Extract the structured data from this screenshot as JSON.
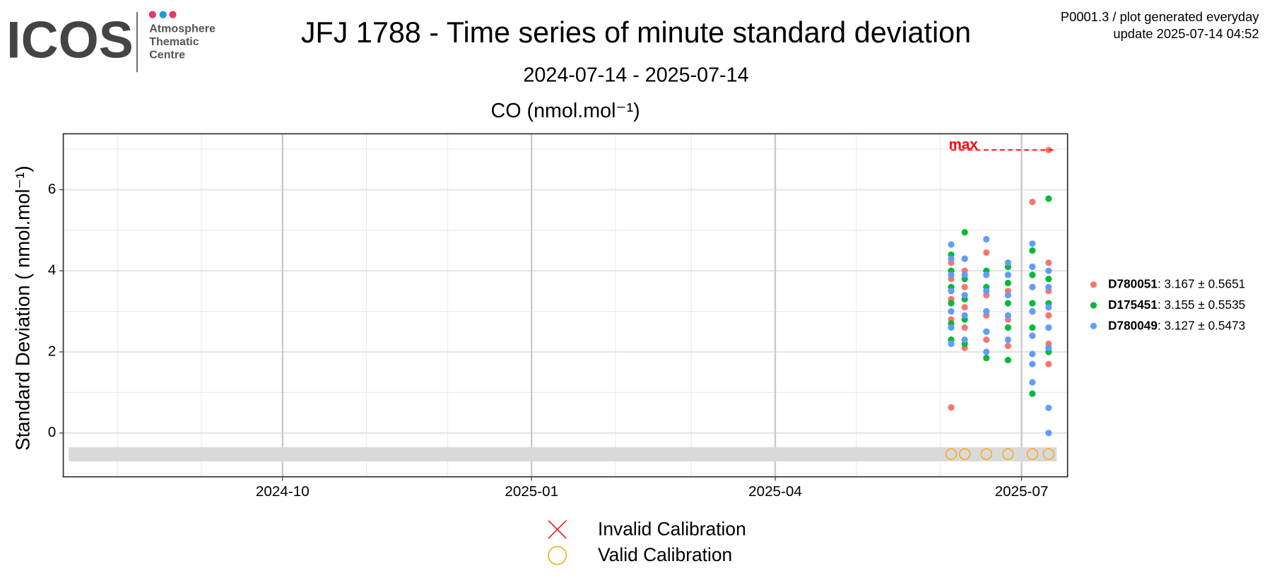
{
  "header": {
    "logo": "ICOS",
    "logo_lines": [
      "Atmosphere",
      "Thematic",
      "Centre"
    ],
    "info_lines": [
      "P0001.3 / plot generated everyday",
      "update  2025-07-14 04:52"
    ]
  },
  "chart_data": {
    "type": "scatter",
    "title": "JFJ 1788 - Time series of minute standard deviation",
    "subtitle": "2024-07-14 - 2025-07-14",
    "panel_title": "CO (nmol.mol⁻¹)",
    "y_label": "Standard Deviation ( nmol.mol⁻¹)",
    "xlim": [
      "2024-07-12",
      "2025-07-18"
    ],
    "xticks": [
      "2024-10",
      "2025-01",
      "2025-04",
      "2025-07"
    ],
    "ylim": [
      -1.08,
      7.38
    ],
    "yticks": [
      0,
      2,
      4,
      6
    ],
    "grid": true,
    "minor_grid": true,
    "legend": "right",
    "series": [
      {
        "name": "D780051",
        "summary": ": 3.167 ± 0.5651",
        "color": "#F8766D",
        "x": [
          "2025-06-05",
          "2025-06-05",
          "2025-06-05",
          "2025-06-05",
          "2025-06-05",
          "2025-06-05",
          "2025-06-10",
          "2025-06-10",
          "2025-06-10",
          "2025-06-10",
          "2025-06-10",
          "2025-06-18",
          "2025-06-18",
          "2025-06-18",
          "2025-06-18",
          "2025-06-26",
          "2025-06-26",
          "2025-06-26",
          "2025-06-26",
          "2025-07-05",
          "2025-07-05",
          "2025-07-05",
          "2025-07-05",
          "2025-07-05",
          "2025-07-11",
          "2025-07-11",
          "2025-07-11",
          "2025-07-11",
          "2025-07-11",
          "2025-07-11"
        ],
        "values": [
          0.63,
          2.3,
          2.8,
          3.3,
          3.8,
          4.2,
          2.1,
          2.6,
          3.1,
          3.6,
          4.0,
          2.3,
          2.9,
          3.4,
          4.45,
          2.15,
          2.8,
          3.5,
          3.9,
          2.4,
          3.0,
          3.6,
          4.1,
          5.7,
          1.7,
          2.2,
          2.9,
          3.5,
          4.2,
          6.98
        ]
      },
      {
        "name": "D175451",
        "summary": ": 3.155 ± 0.5535",
        "color": "#00BA38",
        "x": [
          "2025-06-05",
          "2025-06-05",
          "2025-06-05",
          "2025-06-05",
          "2025-06-05",
          "2025-06-05",
          "2025-06-10",
          "2025-06-10",
          "2025-06-10",
          "2025-06-10",
          "2025-06-10",
          "2025-06-10",
          "2025-06-18",
          "2025-06-18",
          "2025-06-18",
          "2025-06-18",
          "2025-06-18",
          "2025-06-26",
          "2025-06-26",
          "2025-06-26",
          "2025-06-26",
          "2025-06-26",
          "2025-07-05",
          "2025-07-05",
          "2025-07-05",
          "2025-07-05",
          "2025-07-05",
          "2025-07-11",
          "2025-07-11",
          "2025-07-11",
          "2025-07-11",
          "2025-07-11"
        ],
        "values": [
          2.3,
          2.7,
          3.2,
          3.6,
          4.0,
          4.4,
          2.2,
          2.8,
          3.3,
          3.8,
          4.3,
          4.95,
          1.85,
          2.5,
          3.0,
          3.6,
          4.0,
          1.8,
          2.6,
          3.2,
          3.7,
          4.1,
          0.97,
          2.6,
          3.2,
          3.9,
          4.5,
          2.0,
          2.6,
          3.2,
          3.8,
          5.78
        ]
      },
      {
        "name": "D780049",
        "summary": ": 3.127 ± 0.5473",
        "color": "#619CFF",
        "x": [
          "2025-06-05",
          "2025-06-05",
          "2025-06-05",
          "2025-06-05",
          "2025-06-05",
          "2025-06-05",
          "2025-06-05",
          "2025-06-10",
          "2025-06-10",
          "2025-06-10",
          "2025-06-10",
          "2025-06-10",
          "2025-06-18",
          "2025-06-18",
          "2025-06-18",
          "2025-06-18",
          "2025-06-18",
          "2025-06-18",
          "2025-06-26",
          "2025-06-26",
          "2025-06-26",
          "2025-06-26",
          "2025-06-26",
          "2025-07-05",
          "2025-07-05",
          "2025-07-05",
          "2025-07-05",
          "2025-07-05",
          "2025-07-05",
          "2025-07-05",
          "2025-07-05",
          "2025-07-11",
          "2025-07-11",
          "2025-07-11",
          "2025-07-11",
          "2025-07-11",
          "2025-07-11",
          "2025-07-11"
        ],
        "values": [
          2.2,
          2.6,
          3.0,
          3.5,
          3.9,
          4.3,
          4.65,
          2.3,
          2.9,
          3.4,
          3.9,
          4.3,
          2.0,
          2.5,
          3.0,
          3.5,
          3.9,
          4.78,
          2.3,
          2.9,
          3.4,
          3.9,
          4.2,
          1.25,
          1.7,
          1.95,
          2.4,
          3.0,
          3.6,
          4.1,
          4.67,
          0.0,
          0.62,
          2.1,
          2.6,
          3.1,
          3.6,
          4.0
        ]
      }
    ],
    "max_line": {
      "label": "max",
      "value": 6.98,
      "x": [
        "2025-06-05",
        "2025-07-14"
      ],
      "color": "#FF0000"
    },
    "band": {
      "x": [
        "2024-07-14",
        "2025-07-14"
      ],
      "y": [
        -0.7,
        -0.35
      ],
      "color": "#D9D9D9"
    },
    "calibrations": {
      "invalid": {
        "label": "Invalid Calibration",
        "color": "#FF0000",
        "x": []
      },
      "valid": {
        "label": "Valid Calibration",
        "color": "#FFA500",
        "y": -0.52,
        "x": [
          "2025-06-05",
          "2025-06-10",
          "2025-06-18",
          "2025-06-26",
          "2025-07-05",
          "2025-07-11"
        ]
      }
    }
  }
}
